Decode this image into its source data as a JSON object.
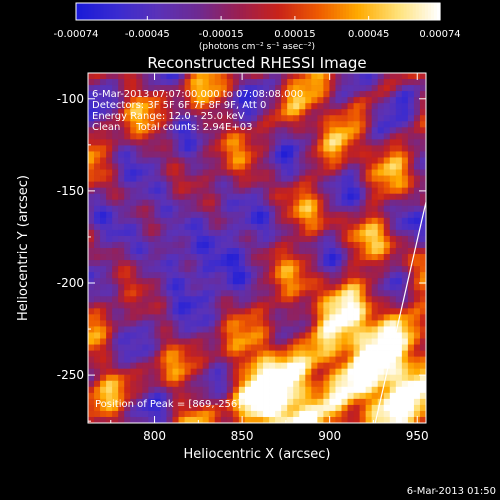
{
  "chart_data": {
    "type": "heatmap",
    "title": "Reconstructed RHESSI Image",
    "xlabel": "Heliocentric X (arcsec)",
    "ylabel": "Heliocentric Y (arcsec)",
    "xlim": [
      762,
      955
    ],
    "ylim": [
      -276,
      -86
    ],
    "xticks": [
      800,
      850,
      900,
      950
    ],
    "yticks": [
      -250,
      -200,
      -150,
      -100
    ],
    "colorbar": {
      "min": -0.00074,
      "max": 0.00074,
      "tick_values": [
        -0.00074,
        -0.00045,
        -0.00015,
        0.00015,
        0.00045,
        0.00074
      ],
      "tick_labels": [
        "-0.00074",
        "-0.00045",
        "-0.00015",
        "0.00015",
        "0.00045",
        "0.00074"
      ],
      "unit": "(photons cm⁻² s⁻¹ asec⁻²)",
      "colors": [
        "#1a1ad8",
        "#3a2bd0",
        "#5a32b8",
        "#6e2a92",
        "#9a1f52",
        "#c8221a",
        "#ee5a00",
        "#ffaa00",
        "#ffe27a",
        "#ffffff"
      ]
    },
    "annotations": {
      "time_range": "6-Mar-2013 07:07:00.000 to 07:08:08.000",
      "detectors": "Detectors: 3F 5F 6F 7F 8F 9F, Att 0",
      "energy": "Energy Range: 12.0 - 25.0 keV",
      "method": "Clean     Total counts: 2.94E+03",
      "peak": "Position of Peak = [869,-256]"
    },
    "limb_line": {
      "x": [
        926,
        955
      ],
      "y": [
        -276,
        -156
      ]
    },
    "grid": false,
    "legend": "none"
  },
  "footer": {
    "timestamp": "6-Mar-2013 01:50"
  }
}
